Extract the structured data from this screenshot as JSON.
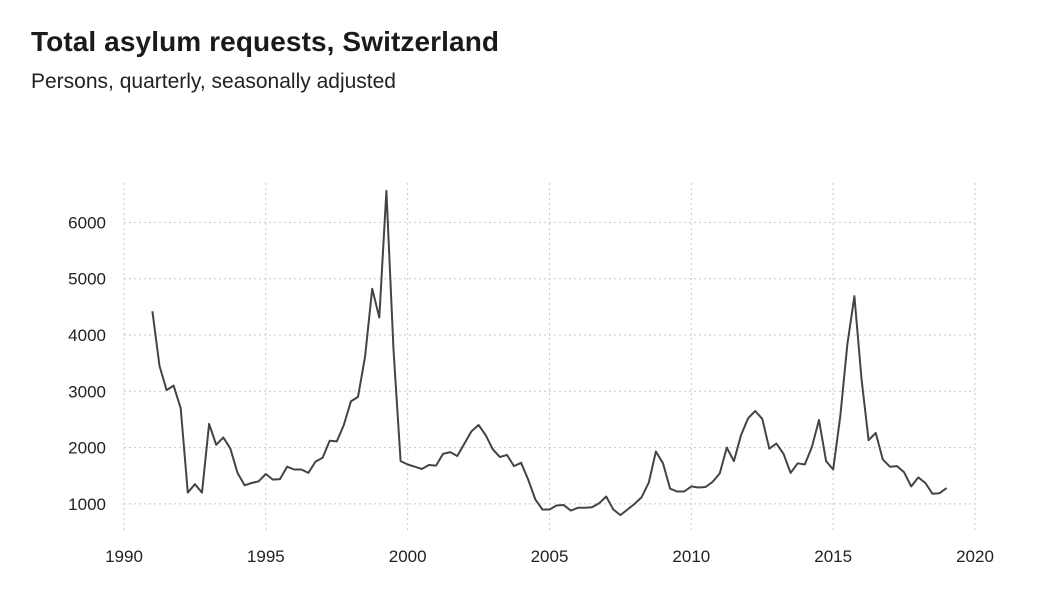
{
  "header": {
    "title": "Total asylum requests, Switzerland",
    "subtitle": "Persons, quarterly, seasonally adjusted"
  },
  "chart_data": {
    "type": "line",
    "title": "Total asylum requests, Switzerland",
    "subtitle": "Persons, quarterly, seasonally adjusted",
    "xlabel": "",
    "ylabel": "",
    "xlim": [
      1990,
      2020
    ],
    "ylim": [
      500,
      6700
    ],
    "x_ticks": [
      1990,
      1995,
      2000,
      2005,
      2010,
      2015,
      2020
    ],
    "y_ticks": [
      1000,
      2000,
      3000,
      4000,
      5000,
      6000
    ],
    "grid": true,
    "line_color": "#444444",
    "series": [
      {
        "x": [
          1991.0,
          1991.25,
          1991.5,
          1991.75,
          1992.0,
          1992.25,
          1992.5,
          1992.75,
          1993.0,
          1993.25,
          1993.5,
          1993.75,
          1994.0,
          1994.25,
          1994.5,
          1994.75,
          1995.0,
          1995.25,
          1995.5,
          1995.75,
          1996.0,
          1996.25,
          1996.5,
          1996.75,
          1997.0,
          1997.25,
          1997.5,
          1997.75,
          1998.0,
          1998.25,
          1998.5,
          1998.75,
          1999.0,
          1999.25,
          1999.5,
          1999.75,
          2000.0,
          2000.25,
          2000.5,
          2000.75,
          2001.0,
          2001.25,
          2001.5,
          2001.75,
          2002.0,
          2002.25,
          2002.5,
          2002.75,
          2003.0,
          2003.25,
          2003.5,
          2003.75,
          2004.0,
          2004.25,
          2004.5,
          2004.75,
          2005.0,
          2005.25,
          2005.5,
          2005.75,
          2006.0,
          2006.25,
          2006.5,
          2006.75,
          2007.0,
          2007.25,
          2007.5,
          2007.75,
          2008.0,
          2008.25,
          2008.5,
          2008.75,
          2009.0,
          2009.25,
          2009.5,
          2009.75,
          2010.0,
          2010.25,
          2010.5,
          2010.75,
          2011.0,
          2011.25,
          2011.5,
          2011.75,
          2012.0,
          2012.25,
          2012.5,
          2012.75,
          2013.0,
          2013.25,
          2013.5,
          2013.75,
          2014.0,
          2014.25,
          2014.5,
          2014.75,
          2015.0,
          2015.25,
          2015.5,
          2015.75,
          2016.0,
          2016.25,
          2016.5,
          2016.75,
          2017.0,
          2017.25,
          2017.5,
          2017.75,
          2018.0,
          2018.25,
          2018.5,
          2018.75,
          2019.0
        ],
        "values": [
          4420,
          3450,
          3020,
          3100,
          2700,
          1200,
          1350,
          1200,
          2420,
          2050,
          2180,
          1980,
          1550,
          1330,
          1370,
          1400,
          1530,
          1430,
          1440,
          1660,
          1610,
          1610,
          1550,
          1750,
          1820,
          2120,
          2110,
          2400,
          2820,
          2900,
          3620,
          4820,
          4310,
          6560,
          3740,
          1760,
          1700,
          1660,
          1620,
          1690,
          1680,
          1890,
          1920,
          1850,
          2070,
          2290,
          2400,
          2220,
          1970,
          1830,
          1870,
          1670,
          1730,
          1430,
          1080,
          900,
          900,
          970,
          980,
          880,
          930,
          930,
          940,
          1010,
          1130,
          900,
          800,
          900,
          1000,
          1120,
          1380,
          1930,
          1720,
          1270,
          1220,
          1220,
          1310,
          1290,
          1300,
          1390,
          1540,
          2000,
          1760,
          2220,
          2520,
          2650,
          2510,
          1980,
          2070,
          1890,
          1550,
          1720,
          1700,
          2010,
          2490,
          1760,
          1610,
          2560,
          3840,
          4690,
          3220,
          2130,
          2260,
          1790,
          1660,
          1670,
          1560,
          1310,
          1470,
          1370,
          1180,
          1190,
          1280
        ]
      }
    ]
  }
}
